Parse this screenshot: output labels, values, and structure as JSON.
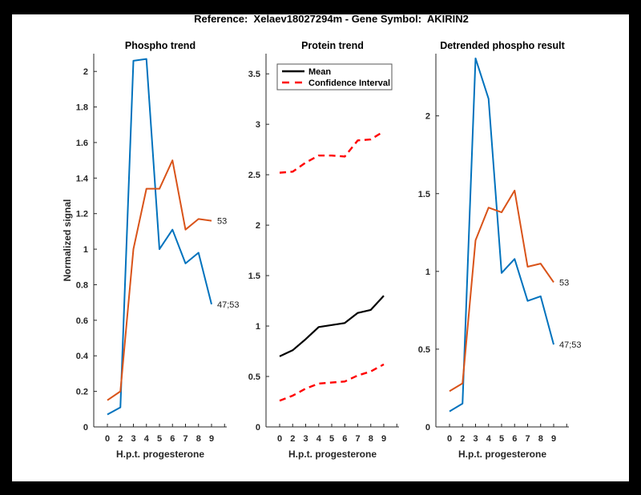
{
  "figure": {
    "title": "Reference:  Xelaev18027294m - Gene Symbol:  AKIRIN2"
  },
  "colors": {
    "blue": "#0072BD",
    "orange": "#D95319",
    "red": "#FF0000",
    "black": "#000000",
    "axis": "#262626"
  },
  "chart_data": [
    {
      "type": "line",
      "title": "Phospho trend",
      "xlabel": "H.p.t. progesterone",
      "ylabel": "Normalized signal",
      "x_tick_labels": [
        "0",
        "2",
        "3",
        "4",
        "5",
        "6",
        "7",
        "8",
        "9"
      ],
      "y_tick_labels": [
        "0",
        "0.2",
        "0.4",
        "0.6",
        "0.8",
        "1",
        "1.2",
        "1.4",
        "1.6",
        "1.8",
        "2"
      ],
      "ylim": [
        0,
        2.1
      ],
      "grid": false,
      "series": [
        {
          "name": "phospho-site-47-53",
          "color": "#0072BD",
          "dash": false,
          "line_width": 2,
          "values": [
            0.07,
            0.11,
            2.06,
            2.07,
            1.0,
            1.11,
            0.92,
            0.98,
            0.69
          ],
          "end_label": "47;53"
        },
        {
          "name": "phospho-site-53",
          "color": "#D95319",
          "dash": false,
          "line_width": 2,
          "values": [
            0.15,
            0.2,
            1.0,
            1.34,
            1.34,
            1.5,
            1.11,
            1.17,
            1.16
          ],
          "end_label": "53"
        }
      ]
    },
    {
      "type": "line",
      "title": "Protein trend",
      "xlabel": "H.p.t. progesterone",
      "ylabel": "",
      "x_tick_labels": [
        "0",
        "2",
        "3",
        "4",
        "5",
        "6",
        "7",
        "8",
        "9"
      ],
      "y_tick_labels": [
        "0",
        "0.5",
        "1",
        "1.5",
        "2",
        "2.5",
        "3",
        "3.5"
      ],
      "ylim": [
        0,
        3.7
      ],
      "grid": false,
      "legend": {
        "position": "northwest-inside",
        "entries": [
          {
            "label": "Mean",
            "color": "#000000",
            "dash": false
          },
          {
            "label": "Confidence Interval",
            "color": "#FF0000",
            "dash": true
          }
        ]
      },
      "series": [
        {
          "name": "confidence-interval-upper",
          "color": "#FF0000",
          "dash": true,
          "line_width": 2.4,
          "values": [
            2.52,
            2.53,
            2.62,
            2.69,
            2.69,
            2.68,
            2.84,
            2.85,
            2.93
          ]
        },
        {
          "name": "mean",
          "color": "#000000",
          "dash": false,
          "line_width": 2.2,
          "values": [
            0.7,
            0.76,
            0.87,
            0.99,
            1.01,
            1.03,
            1.13,
            1.16,
            1.3
          ]
        },
        {
          "name": "confidence-interval-lower",
          "color": "#FF0000",
          "dash": true,
          "line_width": 2.4,
          "values": [
            0.26,
            0.31,
            0.38,
            0.43,
            0.44,
            0.45,
            0.51,
            0.55,
            0.62
          ]
        }
      ]
    },
    {
      "type": "line",
      "title": "Detrended phospho result",
      "xlabel": "H.p.t. progesterone",
      "ylabel": "",
      "x_tick_labels": [
        "0",
        "2",
        "3",
        "4",
        "5",
        "6",
        "7",
        "8",
        "9"
      ],
      "y_tick_labels": [
        "0",
        "0.5",
        "1",
        "1.5",
        "2"
      ],
      "ylim": [
        0,
        2.4
      ],
      "grid": false,
      "series": [
        {
          "name": "detrended-site-47-53",
          "color": "#0072BD",
          "dash": false,
          "line_width": 2,
          "values": [
            0.1,
            0.15,
            2.37,
            2.11,
            0.99,
            1.08,
            0.81,
            0.84,
            0.53
          ],
          "end_label": "47;53"
        },
        {
          "name": "detrended-site-53",
          "color": "#D95319",
          "dash": false,
          "line_width": 2,
          "values": [
            0.23,
            0.28,
            1.2,
            1.41,
            1.38,
            1.52,
            1.03,
            1.05,
            0.93
          ],
          "end_label": "53"
        }
      ]
    }
  ]
}
